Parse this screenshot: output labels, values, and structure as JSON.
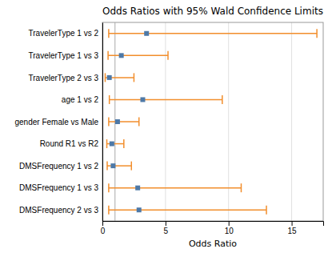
{
  "chart_data": {
    "type": "forest",
    "title": "Odds Ratios with 95% Wald Confidence Limits",
    "xlabel": "Odds Ratio",
    "categories": [
      "TravelerType 1 vs 2",
      "TravelerType 1 vs 3",
      "TravelerType 2 vs 3",
      "age 1 vs 2",
      "gender Female vs Male",
      "Round R1 vs R2",
      "DMSFrequency 1 vs 2",
      "DMSFrequency 1 vs 3",
      "DMSFrequency 2 vs 3"
    ],
    "values": [
      3.5,
      1.5,
      0.55,
      3.2,
      1.2,
      0.75,
      0.85,
      2.8,
      2.9
    ],
    "ci_lower": [
      0.5,
      0.45,
      0.22,
      0.55,
      0.5,
      0.35,
      0.38,
      0.5,
      0.5
    ],
    "ci_upper": [
      17.0,
      5.2,
      2.5,
      9.5,
      2.9,
      1.7,
      2.3,
      11.0,
      13.0
    ],
    "reference_x": 1.0,
    "xlim": [
      0,
      17.5
    ],
    "xticks": [
      0,
      5,
      10,
      15
    ],
    "grid": true
  }
}
